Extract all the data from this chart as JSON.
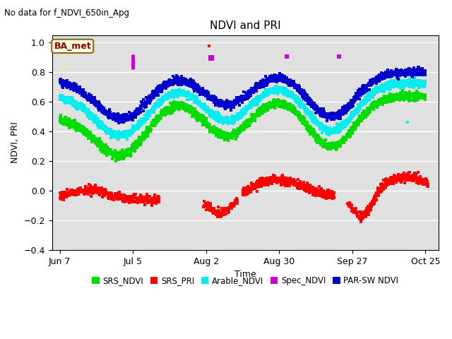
{
  "title": "NDVI and PRI",
  "subtitle": "No data for f_NDVI_650in_Apg",
  "ylabel": "NDVI, PRI",
  "xlabel": "Time",
  "watermark": "BA_met",
  "ylim": [
    -0.4,
    1.05
  ],
  "yticks": [
    -0.4,
    -0.2,
    0.0,
    0.2,
    0.4,
    0.6,
    0.8,
    1.0
  ],
  "background_color": "#ffffff",
  "plot_bg_color": "#e0e0e0",
  "xtick_positions": [
    0,
    28,
    56,
    84,
    112,
    140
  ],
  "xtick_labels": [
    "Jun 7",
    "Jul 5",
    "Aug 2",
    "Aug 30",
    "Sep 27",
    "Oct 25"
  ],
  "xlim": [
    -3,
    145
  ],
  "colors": {
    "srs_ndvi": "#00dd00",
    "srs_pri": "#ff0000",
    "arable_ndvi": "#00eeee",
    "spec_ndvi": "#cc00cc",
    "parsw_ndvi": "#0000cc"
  },
  "marker_size": 6,
  "legend_labels": [
    "SRS_NDVI",
    "SRS_PRI",
    "Arable_NDVI",
    "Spec_NDVI",
    "PAR-SW NDVI"
  ]
}
